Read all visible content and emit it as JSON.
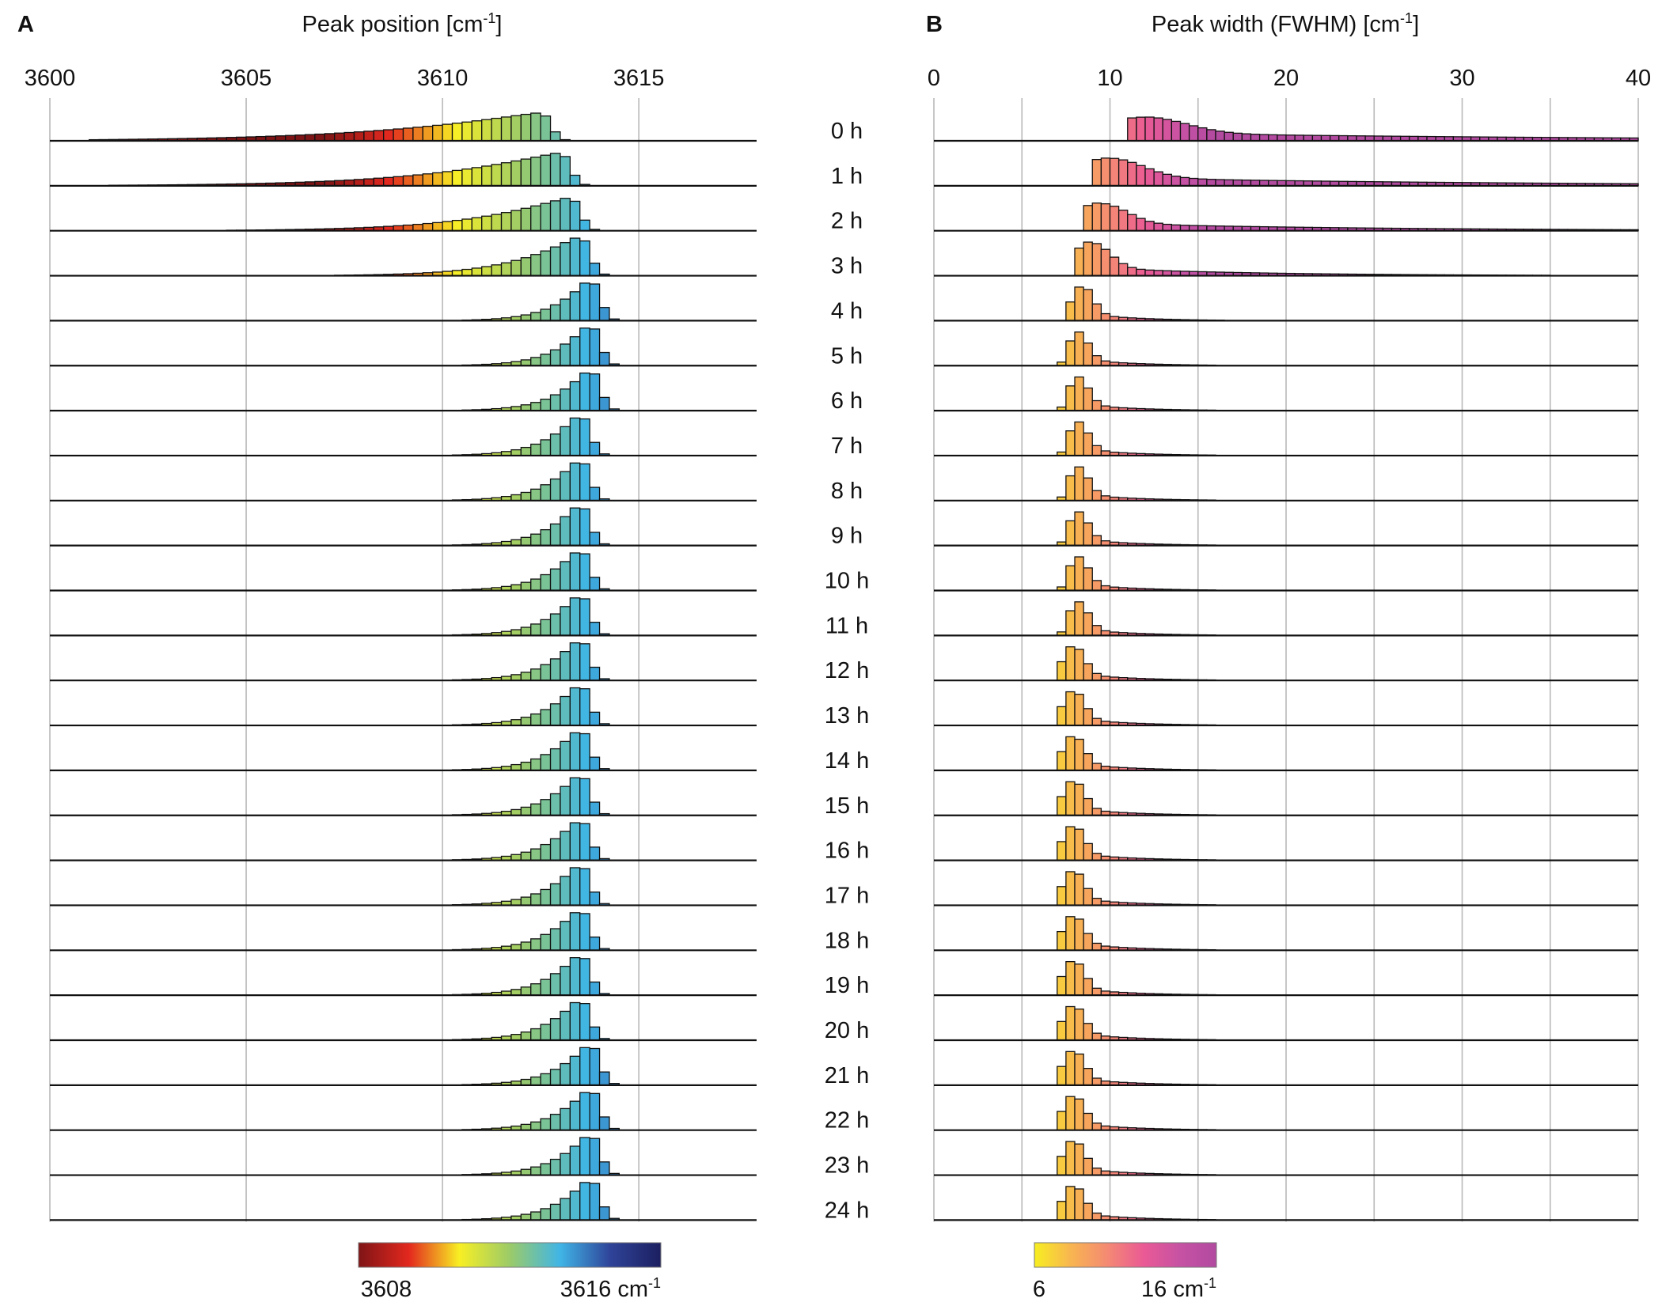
{
  "panels": {
    "A": {
      "letter": "A",
      "title_base": "Peak position [cm",
      "title_sup": "-1",
      "title_end": "]",
      "xlim": [
        3600,
        3618
      ],
      "ticks": [
        "3600",
        "3605",
        "3610",
        "3615"
      ],
      "bin_width": 0.25,
      "colorbar": {
        "min_label": "3608",
        "max_label": "3616 cm",
        "unit_sup": "-1",
        "range": [
          3607,
          3617
        ],
        "stops": [
          "#7f1416",
          "#e3281e",
          "#f8ef24",
          "#9ccb68",
          "#40b5e6",
          "#2f4398",
          "#1c1f60"
        ]
      }
    },
    "B": {
      "letter": "B",
      "title_base": "Peak width (FWHM) [cm",
      "title_sup": "-1",
      "title_end": "]",
      "xlim": [
        0,
        40
      ],
      "ticks": [
        "0",
        "10",
        "20",
        "30",
        "40"
      ],
      "bin_width": 0.5,
      "colorbar": {
        "min_label": "6",
        "max_label": "16 cm",
        "unit_sup": "-1",
        "range": [
          6,
          16
        ],
        "stops": [
          "#f7ee22",
          "#f8b550",
          "#f48a73",
          "#ea5a95",
          "#c652a3",
          "#b24aa0"
        ]
      }
    }
  },
  "time_labels": [
    "0 h",
    "1 h",
    "2 h",
    "3 h",
    "4 h",
    "5 h",
    "6 h",
    "7 h",
    "8 h",
    "9 h",
    "10 h",
    "11 h",
    "12 h",
    "13 h",
    "14 h",
    "15 h",
    "16 h",
    "17 h",
    "18 h",
    "19 h",
    "20 h",
    "21 h",
    "22 h",
    "23 h",
    "24 h"
  ],
  "chart_data": [
    {
      "type": "bar",
      "subtype": "stacked-histograms",
      "title": "Peak position [cm-1]",
      "xlabel": "Peak position [cm-1]",
      "xlim": [
        3600,
        3618
      ],
      "series_note": "25 histograms of peak position, one per time point (0 h to 24 h); bars colored by position",
      "series": [
        {
          "name": "0 h",
          "peak_center": 3612.5,
          "counts_relative_mode": 3612.75,
          "spread": "broad (3603-3614)"
        },
        {
          "name": "1 h",
          "peak_center": 3613.0,
          "spread": "3604-3614"
        },
        {
          "name": "2 h",
          "peak_center": 3613.25,
          "spread": "3606-3614"
        },
        {
          "name": "3 h",
          "peak_center": 3613.5
        },
        {
          "name": "4 h",
          "peak_center": 3613.75
        },
        {
          "name": "5 h",
          "peak_center": 3613.75
        },
        {
          "name": "6 h",
          "peak_center": 3613.75
        },
        {
          "name": "7 h",
          "peak_center": 3613.5
        },
        {
          "name": "8 h",
          "peak_center": 3613.5
        },
        {
          "name": "9 h",
          "peak_center": 3613.5
        },
        {
          "name": "10 h",
          "peak_center": 3613.5
        },
        {
          "name": "11 h",
          "peak_center": 3613.5
        },
        {
          "name": "12 h",
          "peak_center": 3613.5
        },
        {
          "name": "13 h",
          "peak_center": 3613.5
        },
        {
          "name": "14 h",
          "peak_center": 3613.5
        },
        {
          "name": "15 h",
          "peak_center": 3613.5
        },
        {
          "name": "16 h",
          "peak_center": 3613.5
        },
        {
          "name": "17 h",
          "peak_center": 3613.5
        },
        {
          "name": "18 h",
          "peak_center": 3613.5
        },
        {
          "name": "19 h",
          "peak_center": 3613.5
        },
        {
          "name": "20 h",
          "peak_center": 3613.5
        },
        {
          "name": "21 h",
          "peak_center": 3613.75
        },
        {
          "name": "22 h",
          "peak_center": 3613.75
        },
        {
          "name": "23 h",
          "peak_center": 3613.75
        },
        {
          "name": "24 h",
          "peak_center": 3613.75
        }
      ]
    },
    {
      "type": "bar",
      "subtype": "stacked-histograms",
      "title": "Peak width (FWHM) [cm-1]",
      "xlabel": "Peak width (FWHM) [cm-1]",
      "xlim": [
        0,
        40
      ],
      "series_note": "25 histograms of FWHM, one per time point (0 h to 24 h); bars colored by width",
      "series": [
        {
          "name": "0 h",
          "mode": 12,
          "tail": "heavy, to 40"
        },
        {
          "name": "1 h",
          "mode": 10,
          "tail": "heavy, to 40"
        },
        {
          "name": "2 h",
          "mode": 9.5,
          "tail": "moderate"
        },
        {
          "name": "3 h",
          "mode": 9
        },
        {
          "name": "4 h",
          "mode": 8.5
        },
        {
          "name": "5 h",
          "mode": 8.25
        },
        {
          "name": "6 h",
          "mode": 8.25
        },
        {
          "name": "7 h",
          "mode": 8.25
        },
        {
          "name": "8 h",
          "mode": 8.25
        },
        {
          "name": "9 h",
          "mode": 8.25
        },
        {
          "name": "10 h",
          "mode": 8.25
        },
        {
          "name": "11 h",
          "mode": 8.25
        },
        {
          "name": "12 h",
          "mode": 8
        },
        {
          "name": "13 h",
          "mode": 8
        },
        {
          "name": "14 h",
          "mode": 8
        },
        {
          "name": "15 h",
          "mode": 8
        },
        {
          "name": "16 h",
          "mode": 8
        },
        {
          "name": "17 h",
          "mode": 8
        },
        {
          "name": "18 h",
          "mode": 8
        },
        {
          "name": "19 h",
          "mode": 8
        },
        {
          "name": "20 h",
          "mode": 8
        },
        {
          "name": "21 h",
          "mode": 8
        },
        {
          "name": "22 h",
          "mode": 8
        },
        {
          "name": "23 h",
          "mode": 8
        },
        {
          "name": "24 h",
          "mode": 8
        }
      ]
    }
  ]
}
